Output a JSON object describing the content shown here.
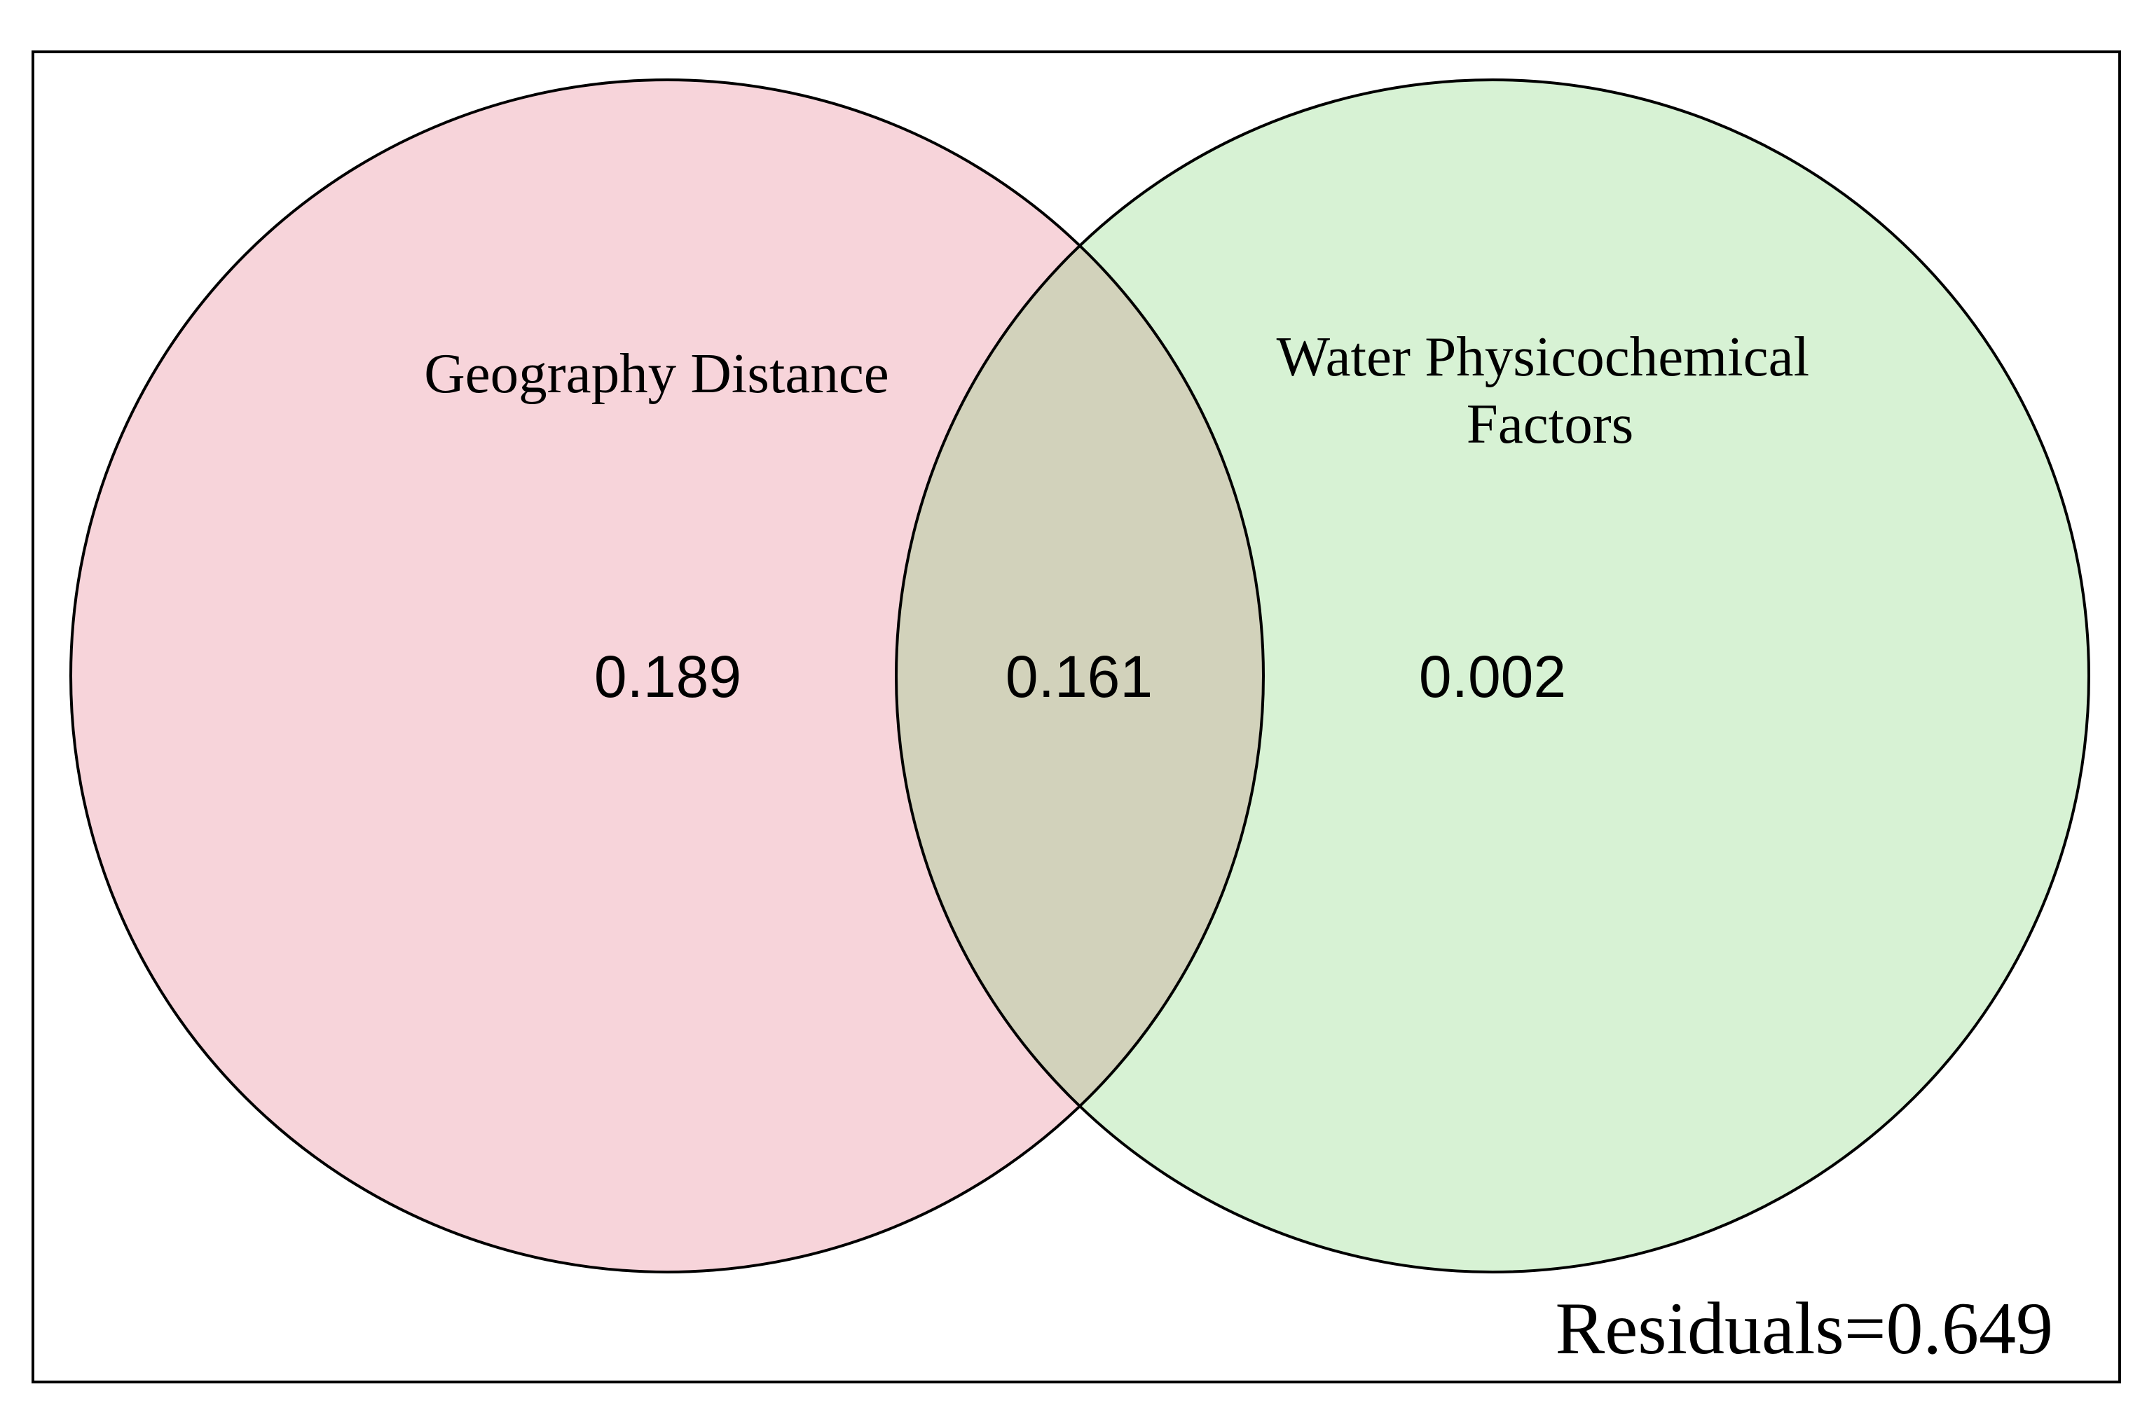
{
  "sets": [
    {
      "name": "Geography Distance",
      "color": "#f7d4da"
    },
    {
      "name_lines": [
        "Water Physicochemical",
        "Factors"
      ],
      "color": "#d7f2d4"
    }
  ],
  "overlap_color": "#d2d2bb",
  "values": {
    "geography_only": "0.189",
    "shared": "0.161",
    "water_only": "0.002"
  },
  "residuals_text": "Residuals=0.649"
}
